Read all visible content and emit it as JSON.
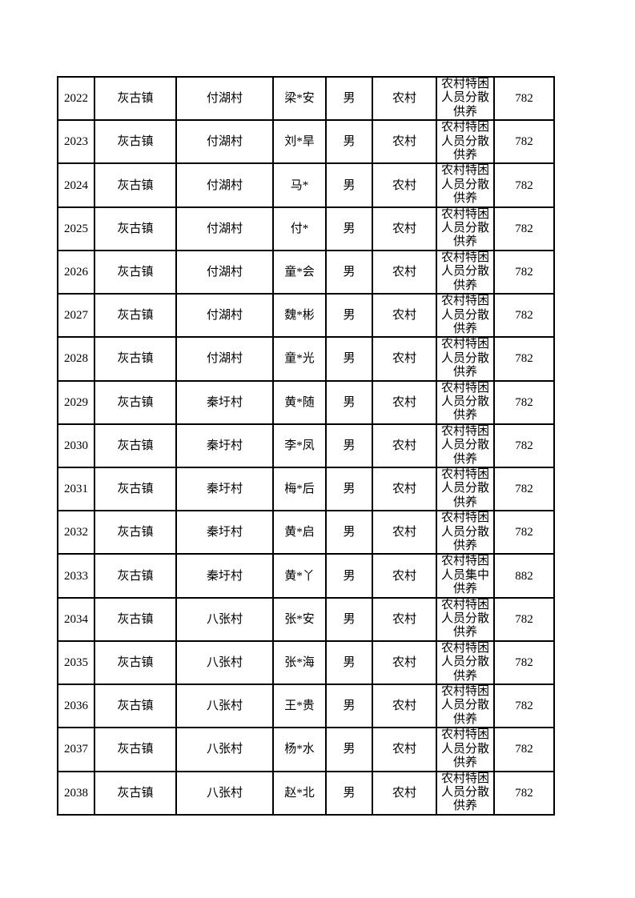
{
  "page": {
    "background_color": "#ffffff",
    "text_color": "#000000",
    "border_color": "#000000"
  },
  "table": {
    "rows": [
      {
        "id": "2022",
        "town": "灰古镇",
        "village": "付湖村",
        "name": "梁*安",
        "gender": "男",
        "area": "农村",
        "category": "农村特困人员分散供养",
        "amount": "782"
      },
      {
        "id": "2023",
        "town": "灰古镇",
        "village": "付湖村",
        "name": "刘*旱",
        "gender": "男",
        "area": "农村",
        "category": "农村特困人员分散供养",
        "amount": "782"
      },
      {
        "id": "2024",
        "town": "灰古镇",
        "village": "付湖村",
        "name": "马*",
        "gender": "男",
        "area": "农村",
        "category": "农村特困人员分散供养",
        "amount": "782"
      },
      {
        "id": "2025",
        "town": "灰古镇",
        "village": "付湖村",
        "name": "付*",
        "gender": "男",
        "area": "农村",
        "category": "农村特困人员分散供养",
        "amount": "782"
      },
      {
        "id": "2026",
        "town": "灰古镇",
        "village": "付湖村",
        "name": "童*会",
        "gender": "男",
        "area": "农村",
        "category": "农村特困人员分散供养",
        "amount": "782"
      },
      {
        "id": "2027",
        "town": "灰古镇",
        "village": "付湖村",
        "name": "魏*彬",
        "gender": "男",
        "area": "农村",
        "category": "农村特困人员分散供养",
        "amount": "782"
      },
      {
        "id": "2028",
        "town": "灰古镇",
        "village": "付湖村",
        "name": "童*光",
        "gender": "男",
        "area": "农村",
        "category": "农村特困人员分散供养",
        "amount": "782"
      },
      {
        "id": "2029",
        "town": "灰古镇",
        "village": "秦圩村",
        "name": "黄*随",
        "gender": "男",
        "area": "农村",
        "category": "农村特困人员分散供养",
        "amount": "782"
      },
      {
        "id": "2030",
        "town": "灰古镇",
        "village": "秦圩村",
        "name": "李*凤",
        "gender": "男",
        "area": "农村",
        "category": "农村特困人员分散供养",
        "amount": "782"
      },
      {
        "id": "2031",
        "town": "灰古镇",
        "village": "秦圩村",
        "name": "梅*后",
        "gender": "男",
        "area": "农村",
        "category": "农村特困人员分散供养",
        "amount": "782"
      },
      {
        "id": "2032",
        "town": "灰古镇",
        "village": "秦圩村",
        "name": "黄*启",
        "gender": "男",
        "area": "农村",
        "category": "农村特困人员分散供养",
        "amount": "782"
      },
      {
        "id": "2033",
        "town": "灰古镇",
        "village": "秦圩村",
        "name": "黄*丫",
        "gender": "男",
        "area": "农村",
        "category": "农村特困人员集中供养",
        "amount": "882"
      },
      {
        "id": "2034",
        "town": "灰古镇",
        "village": "八张村",
        "name": "张*安",
        "gender": "男",
        "area": "农村",
        "category": "农村特困人员分散供养",
        "amount": "782"
      },
      {
        "id": "2035",
        "town": "灰古镇",
        "village": "八张村",
        "name": "张*海",
        "gender": "男",
        "area": "农村",
        "category": "农村特困人员分散供养",
        "amount": "782"
      },
      {
        "id": "2036",
        "town": "灰古镇",
        "village": "八张村",
        "name": "王*贵",
        "gender": "男",
        "area": "农村",
        "category": "农村特困人员分散供养",
        "amount": "782"
      },
      {
        "id": "2037",
        "town": "灰古镇",
        "village": "八张村",
        "name": "杨*水",
        "gender": "男",
        "area": "农村",
        "category": "农村特困人员分散供养",
        "amount": "782"
      },
      {
        "id": "2038",
        "town": "灰古镇",
        "village": "八张村",
        "name": "赵*北",
        "gender": "男",
        "area": "农村",
        "category": "农村特困人员分散供养",
        "amount": "782"
      }
    ]
  }
}
